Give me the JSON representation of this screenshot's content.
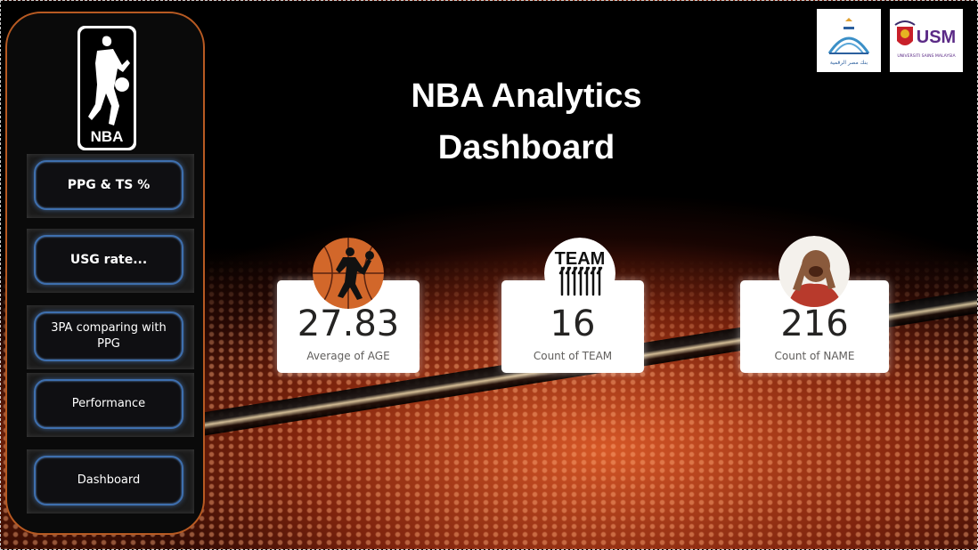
{
  "title": {
    "line1": "NBA Analytics",
    "line2": "Dashboard"
  },
  "sidebar": {
    "logo_text": "NBA",
    "items": [
      {
        "label": "PPG & TS %"
      },
      {
        "label": "USG rate..."
      },
      {
        "label": "3PA comparing with PPG"
      },
      {
        "label": "Performance"
      },
      {
        "label": "Dashboard"
      }
    ]
  },
  "partners": [
    {
      "name": "university-logo-1",
      "caption": "بنك مصر الرقمية"
    },
    {
      "name": "usm-logo",
      "caption": "UNIVERSITI SAINS MALAYSIA",
      "mark": "USM"
    }
  ],
  "cards": [
    {
      "value": "27.83",
      "label": "Average of AGE",
      "icon": "basketball-player-icon"
    },
    {
      "value": "16",
      "label": "Count of TEAM",
      "icon": "team-icon",
      "icon_text": "TEAM"
    },
    {
      "value": "216",
      "label": "Count of NAME",
      "icon": "player-portrait-icon"
    }
  ],
  "colors": {
    "sidebar_border": "#b85a22",
    "button_glow": "#3e6fae",
    "card_bg": "#ffffff",
    "ball_orange": "#d2672a"
  }
}
